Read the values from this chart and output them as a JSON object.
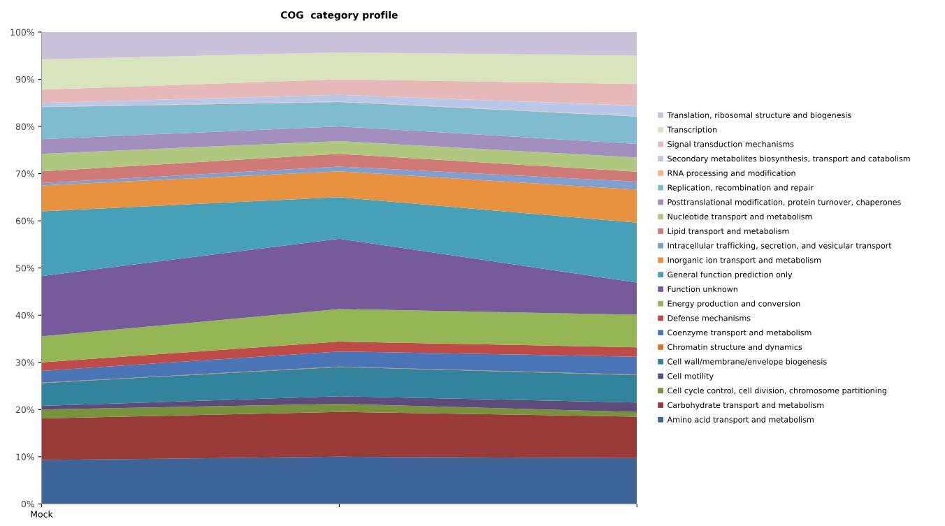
{
  "chart_data": {
    "type": "area",
    "stacked": true,
    "title": "COG  category profile",
    "categories": [
      "Mock",
      null,
      null
    ],
    "ylim": [
      0,
      100
    ],
    "yticks": [
      {
        "value": 0,
        "label": "0%"
      },
      {
        "value": 10,
        "label": "10%"
      },
      {
        "value": 20,
        "label": "20%"
      },
      {
        "value": 30,
        "label": "30%"
      },
      {
        "value": 40,
        "label": "40%"
      },
      {
        "value": 50,
        "label": "50%"
      },
      {
        "value": 60,
        "label": "60%"
      },
      {
        "value": 70,
        "label": "70%"
      },
      {
        "value": 80,
        "label": "80%"
      },
      {
        "value": 90,
        "label": "90%"
      },
      {
        "value": 100,
        "label": "100%"
      }
    ],
    "grid": false,
    "legend": "right",
    "series": [
      {
        "name": "Amino acid transport and metabolism",
        "color": "#3d6497",
        "values": [
          9.3,
          10.0,
          9.7
        ]
      },
      {
        "name": "Carbohydrate transport and metabolism",
        "color": "#983a38",
        "values": [
          8.8,
          9.5,
          8.8
        ]
      },
      {
        "name": "Cell cycle control, cell division, chromosome partitioning",
        "color": "#77933c",
        "values": [
          1.9,
          1.7,
          1.0
        ]
      },
      {
        "name": "Cell motility",
        "color": "#5f4a7c",
        "values": [
          0.8,
          1.6,
          2.0
        ]
      },
      {
        "name": "Cell wall/membrane/envelope biogenesis",
        "color": "#31849b",
        "values": [
          4.8,
          6.2,
          5.8
        ]
      },
      {
        "name": "Chromatin structure and dynamics",
        "color": "#d9722a",
        "values": [
          0.1,
          0.1,
          0.1
        ]
      },
      {
        "name": "Coenzyme transport and metabolism",
        "color": "#4a76b8",
        "values": [
          2.5,
          3.2,
          3.8
        ]
      },
      {
        "name": "Defense mechanisms",
        "color": "#be4b48",
        "values": [
          1.8,
          2.1,
          2.0
        ]
      },
      {
        "name": "Energy production and conversion",
        "color": "#94b655",
        "values": [
          5.5,
          6.9,
          6.9
        ]
      },
      {
        "name": "Function unknown",
        "color": "#765a99",
        "values": [
          12.8,
          14.9,
          6.8
        ]
      },
      {
        "name": "General function prediction only",
        "color": "#45a0b8",
        "values": [
          13.7,
          8.8,
          12.7
        ]
      },
      {
        "name": "Inorganic ion transport and metabolism",
        "color": "#e8913f",
        "values": [
          5.5,
          5.5,
          7.0
        ]
      },
      {
        "name": "Intracellular trafficking, secretion, and vesicular transport",
        "color": "#7f9fd0",
        "values": [
          0.5,
          1.0,
          1.7
        ]
      },
      {
        "name": "Lipid transport and metabolism",
        "color": "#d07a78",
        "values": [
          2.5,
          2.7,
          2.1
        ]
      },
      {
        "name": "Nucleotide transport and metabolism",
        "color": "#afc77f",
        "values": [
          3.7,
          2.7,
          3.0
        ]
      },
      {
        "name": "Posttranslational modification, protein turnover, chaperones",
        "color": "#a38fbf",
        "values": [
          3.1,
          3.1,
          2.9
        ]
      },
      {
        "name": "Replication, recombination and repair",
        "color": "#7fbcd0",
        "values": [
          6.8,
          5.2,
          5.8
        ]
      },
      {
        "name": "RNA processing and modification",
        "color": "#f7b18a",
        "values": [
          0.1,
          0.1,
          0.1
        ]
      },
      {
        "name": "Secondary metabolites biosynthesis, transport and catabolism",
        "color": "#b9c8e8",
        "values": [
          0.8,
          1.4,
          2.2
        ]
      },
      {
        "name": "Signal transduction mechanisms",
        "color": "#e6b9b8",
        "values": [
          2.8,
          3.3,
          4.6
        ]
      },
      {
        "name": "Transcription",
        "color": "#d7e4bd",
        "values": [
          6.4,
          5.7,
          6.0
        ]
      },
      {
        "name": "Translation, ribosomal structure and biogenesis",
        "color": "#ccc1da",
        "values": [
          5.8,
          4.3,
          5.0
        ]
      }
    ]
  }
}
